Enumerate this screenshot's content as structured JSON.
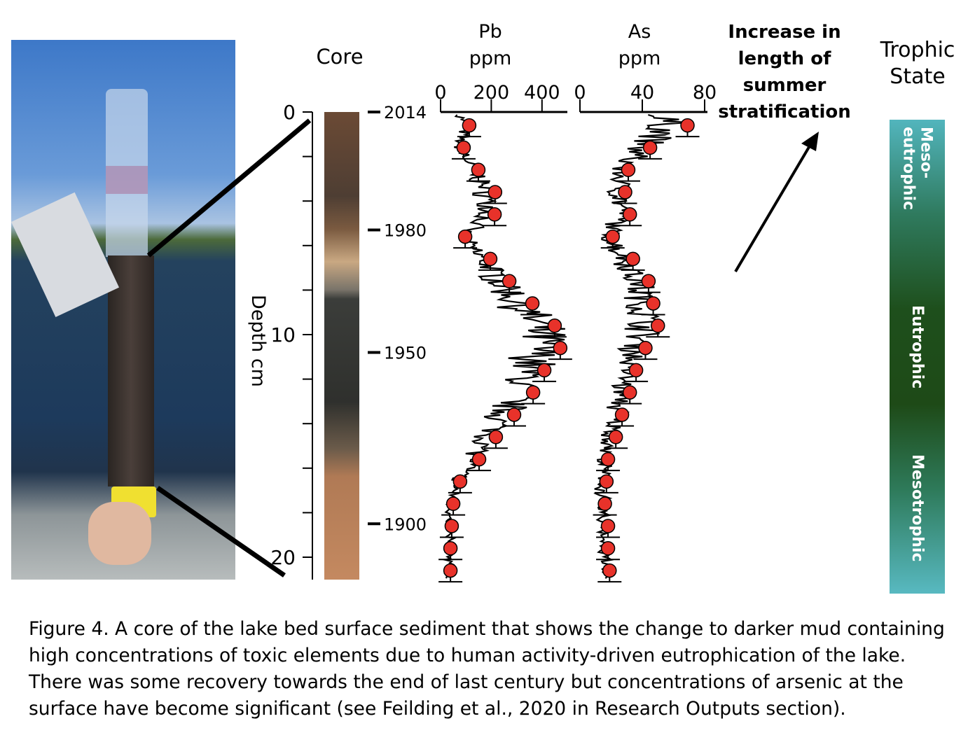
{
  "headers": {
    "core": "Core",
    "pb": [
      "Pb",
      "ppm"
    ],
    "as": [
      "As",
      "ppm"
    ],
    "stratification": [
      "Increase in",
      "length of",
      "summer",
      "stratification"
    ],
    "trophic": [
      "Trophic",
      "State"
    ]
  },
  "trophic_states": [
    "Meso-eutrophic",
    "Eutrophic",
    "Mesotrophic"
  ],
  "caption": "Figure 4. A core of the lake bed surface sediment that shows the change to darker mud containing high concentrations of toxic elements due to human activity-driven eutrophication of the lake. There was some recovery towards the end of last century but concentrations of arsenic at the surface have become significant (see Feilding et al., 2020 in Research Outputs section).",
  "chart_data": [
    {
      "type": "line",
      "ylabel": "Depth cm",
      "ylim": [
        0,
        21
      ],
      "y_reversed": true,
      "y_ticks": [
        "0",
        "10",
        "20"
      ],
      "year_markers": [
        {
          "depth": 0,
          "label": "2014"
        },
        {
          "depth": 5.3,
          "label": "1980"
        },
        {
          "depth": 10.8,
          "label": "1950"
        },
        {
          "depth": 18.5,
          "label": "1900"
        }
      ]
    },
    {
      "type": "scatter",
      "xlabel": "Pb ppm",
      "xlim": [
        0,
        500
      ],
      "x_ticks": [
        "0",
        "200",
        "400"
      ],
      "depth": [
        0.6,
        1.6,
        2.6,
        3.6,
        4.6,
        5.6,
        6.6,
        7.6,
        8.6,
        9.6,
        10.6,
        11.6,
        12.6,
        13.6,
        14.6,
        15.6,
        16.6,
        17.6,
        18.6,
        19.6,
        20.6
      ],
      "values": [
        113,
        91,
        149,
        215,
        213,
        97,
        196,
        271,
        362,
        450,
        472,
        409,
        365,
        290,
        218,
        152,
        77,
        50,
        44,
        39,
        39
      ],
      "point_color": "#e8322a"
    },
    {
      "type": "scatter",
      "xlabel": "As ppm",
      "xlim": [
        0,
        82
      ],
      "x_ticks": [
        "0",
        "40",
        "80"
      ],
      "depth": [
        0.6,
        1.6,
        2.6,
        3.6,
        4.6,
        5.6,
        6.6,
        7.6,
        8.6,
        9.6,
        10.6,
        11.6,
        12.6,
        13.6,
        14.6,
        15.6,
        16.6,
        17.6,
        18.6,
        19.6,
        20.6
      ],
      "values": [
        69,
        45,
        31,
        29,
        32,
        21,
        34,
        44,
        47,
        50,
        42,
        36,
        32,
        27,
        23,
        18,
        17,
        16,
        18,
        18,
        19
      ],
      "point_color": "#e8322a"
    }
  ]
}
